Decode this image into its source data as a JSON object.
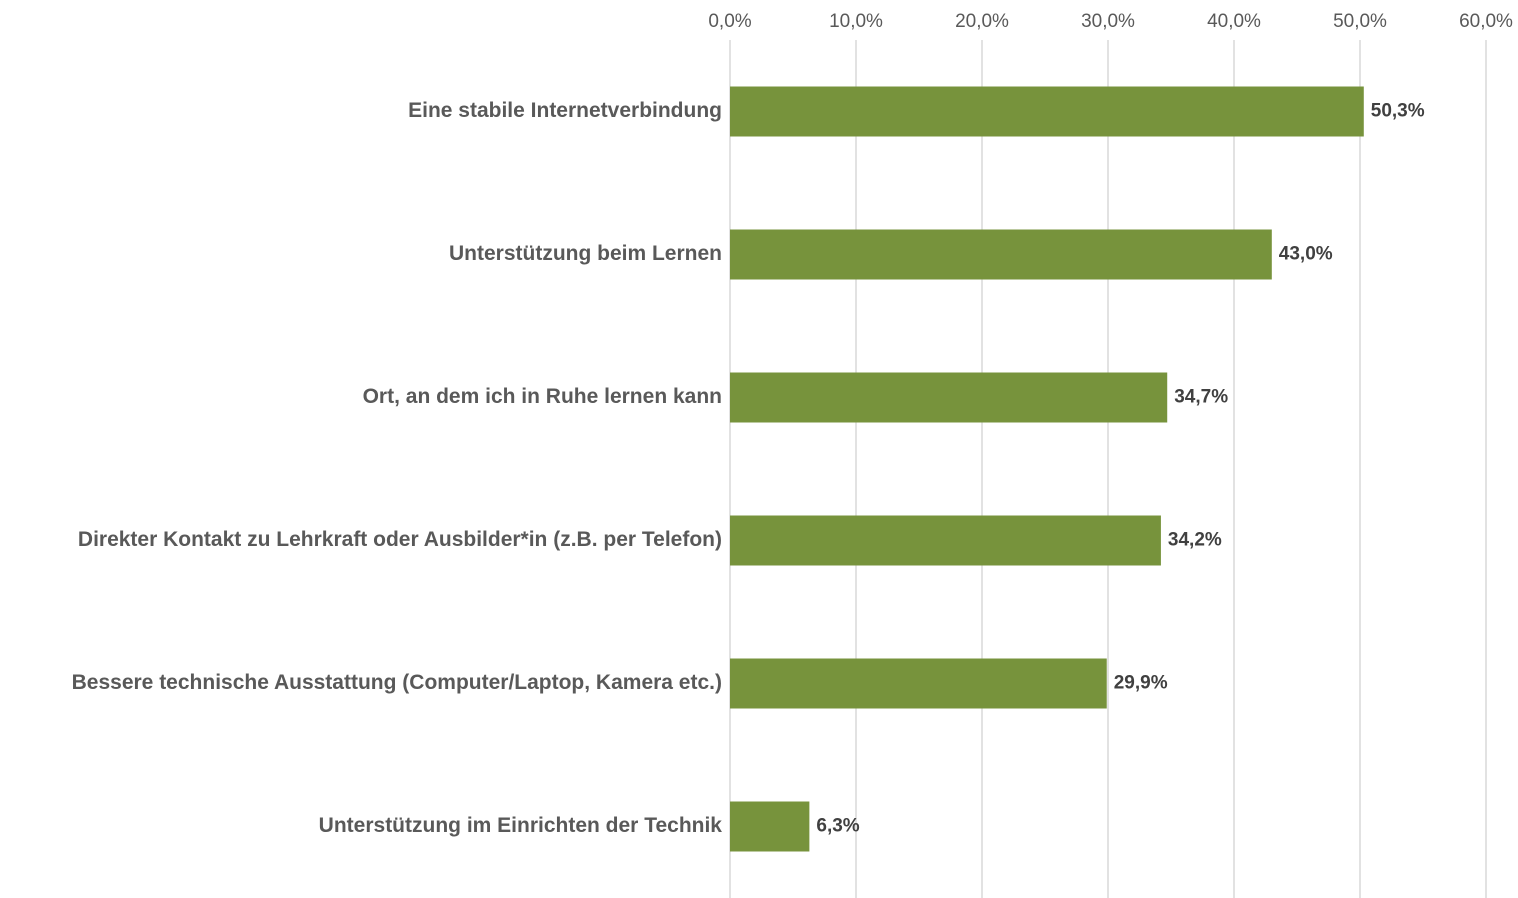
{
  "chart_data": {
    "type": "bar",
    "orientation": "horizontal",
    "categories": [
      "Eine stabile Internetverbindung",
      "Unterstützung beim Lernen",
      "Ort, an dem ich in Ruhe lernen kann",
      "Direkter Kontakt zu Lehrkraft oder Ausbilder*in (z.B. per Telefon)",
      "Bessere technische Ausstattung (Computer/Laptop, Kamera etc.)",
      "Unterstützung im Einrichten der Technik"
    ],
    "values": [
      50.3,
      43.0,
      34.7,
      34.2,
      29.9,
      6.3
    ],
    "value_labels": [
      "50,3%",
      "43,0%",
      "34,7%",
      "34,2%",
      "29,9%",
      "6,3%"
    ],
    "color": "#77933c",
    "xlim": [
      0,
      60
    ],
    "xticks": [
      {
        "value": 0,
        "label": "0,0%"
      },
      {
        "value": 10,
        "label": "10,0%"
      },
      {
        "value": 20,
        "label": "20,0%"
      },
      {
        "value": 30,
        "label": "30,0%"
      },
      {
        "value": 40,
        "label": "40,0%"
      },
      {
        "value": 50,
        "label": "50,0%"
      },
      {
        "value": 60,
        "label": "60,0%"
      }
    ],
    "grid": true
  }
}
